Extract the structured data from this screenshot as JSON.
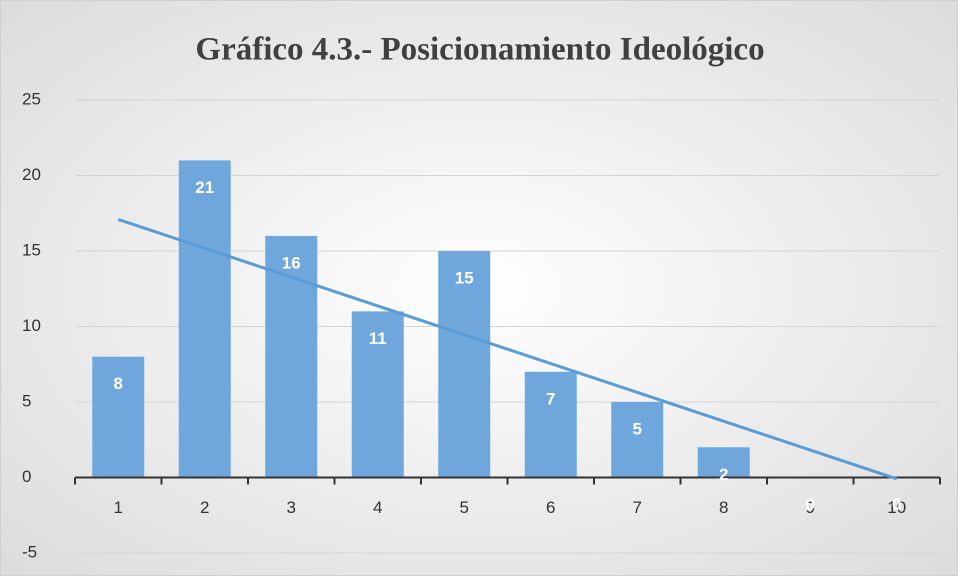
{
  "chart_data": {
    "type": "bar",
    "title": "Gráfico 4.3.- Posicionamiento Ideológico",
    "categories": [
      "1",
      "2",
      "3",
      "4",
      "5",
      "6",
      "7",
      "8",
      "9",
      "10"
    ],
    "values": [
      8,
      21,
      16,
      11,
      15,
      7,
      5,
      2,
      0,
      0
    ],
    "color": "#6fa7dc",
    "trendline": "linear",
    "trendline_color": "#5b9bd5",
    "ylim": [
      -5,
      25
    ],
    "yticks": [
      -5,
      0,
      5,
      10,
      15,
      20,
      25
    ],
    "grid": true
  }
}
